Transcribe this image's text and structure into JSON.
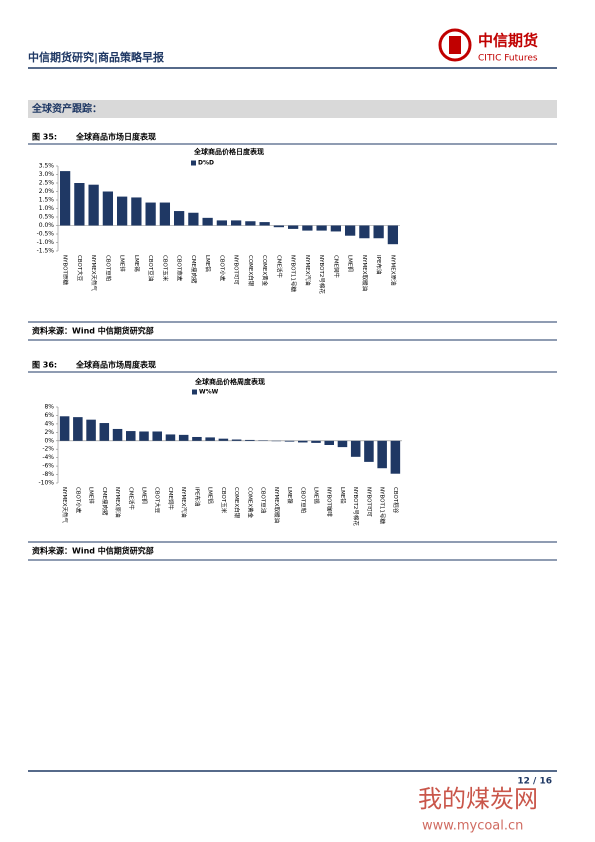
{
  "header": {
    "title": "中信期货研究|商品策略早报",
    "logo_cn": "中信期货",
    "logo_en": "CITIC Futures"
  },
  "section_title": "全球资产跟踪：",
  "figures": [
    {
      "label": "图 35:",
      "caption": "全球商品市场日度表现",
      "source": "资料来源：Wind 中信期货研究部"
    },
    {
      "label": "图 36:",
      "caption": "全球商品市场周度表现",
      "source": "资料来源：Wind 中信期货研究部"
    }
  ],
  "chart_data": [
    {
      "type": "bar",
      "title": "全球商品价格日度表现",
      "categories": [
        "NYBOT原糖",
        "CBOT大豆",
        "NYMEX天然气",
        "CBOT豆粕",
        "LME锌",
        "LME锡",
        "CBOT豆油",
        "CBOT玉米",
        "CBOT燕麦",
        "CME瘦肉猪",
        "LME铝",
        "CBOT小麦",
        "NYBOT可可",
        "COMEX白银",
        "COMEX黄金",
        "CME活牛",
        "NYBOT11号糖",
        "NYMEX汽油",
        "NYBOT2号棉花",
        "CME饲牛",
        "LME铜",
        "NYMEX取暖油",
        "IPE布油",
        "NYMEX原油"
      ],
      "series": [
        {
          "name": "D%D",
          "color": "#1f3864",
          "values": [
            3.2,
            2.5,
            2.4,
            2.0,
            1.7,
            1.65,
            1.35,
            1.35,
            0.85,
            0.75,
            0.45,
            0.3,
            0.3,
            0.25,
            0.2,
            -0.1,
            -0.2,
            -0.3,
            -0.3,
            -0.35,
            -0.6,
            -0.75,
            -0.75,
            -1.1
          ]
        }
      ],
      "ylim": [
        -1.5,
        3.5
      ],
      "yticks": [
        {
          "value": 3.5,
          "label": "3.5%"
        },
        {
          "value": 3,
          "label": "3.0%"
        },
        {
          "value": 2.5,
          "label": "2.5%"
        },
        {
          "value": 2,
          "label": "2.0%"
        },
        {
          "value": 1.5,
          "label": "1.5%"
        },
        {
          "value": 1,
          "label": "1.0%"
        },
        {
          "value": 0.5,
          "label": "0.5%"
        },
        {
          "value": 0,
          "label": "0.0%"
        },
        {
          "value": -0.5,
          "label": "-0.5%"
        },
        {
          "value": -1,
          "label": "-1.0%"
        },
        {
          "value": -1.5,
          "label": "-1.5%"
        }
      ],
      "legend": "top"
    },
    {
      "type": "bar",
      "title": "全球商品价格周度表现",
      "categories": [
        "NYMEX天然气",
        "CBOT小麦",
        "LME锌",
        "CME瘦肉猪",
        "NYMEX原油",
        "CME活牛",
        "LME铜",
        "CBOT大豆",
        "CME饲牛",
        "NYMEX汽油",
        "IPE布油",
        "LME铝",
        "CBOT玉米",
        "COMEX白银",
        "COMEX黄金",
        "CBOT豆油",
        "NYMEX取暖油",
        "LME镍",
        "CBOT豆粕",
        "LME锡",
        "NYBOT咖啡",
        "LME铅",
        "NYBOT2号棉花",
        "NYBOT可可",
        "NYBOT11号糖",
        "CBOT稻谷"
      ],
      "series": [
        {
          "name": "W%W",
          "color": "#1f3864",
          "values": [
            5.8,
            5.6,
            5.0,
            4.2,
            2.8,
            2.3,
            2.2,
            2.2,
            1.5,
            1.4,
            0.9,
            0.8,
            0.5,
            0.3,
            0.2,
            0.1,
            -0.1,
            -0.2,
            -0.4,
            -0.5,
            -1.0,
            -1.5,
            -3.8,
            -5.0,
            -6.5,
            -7.8
          ]
        }
      ],
      "ylim": [
        -10,
        8
      ],
      "yticks": [
        {
          "value": 8,
          "label": "8%"
        },
        {
          "value": 6,
          "label": "6%"
        },
        {
          "value": 4,
          "label": "4%"
        },
        {
          "value": 2,
          "label": "2%"
        },
        {
          "value": 0,
          "label": "0%"
        },
        {
          "value": -2,
          "label": "-2%"
        },
        {
          "value": -4,
          "label": "-4%"
        },
        {
          "value": -6,
          "label": "-6%"
        },
        {
          "value": -8,
          "label": "-8%"
        },
        {
          "value": -10,
          "label": "-10%"
        }
      ],
      "legend": "top"
    }
  ],
  "footer": {
    "page": "12 / 16"
  },
  "watermark": {
    "name": "我的煤炭网",
    "url": "www.mycoal.cn"
  }
}
